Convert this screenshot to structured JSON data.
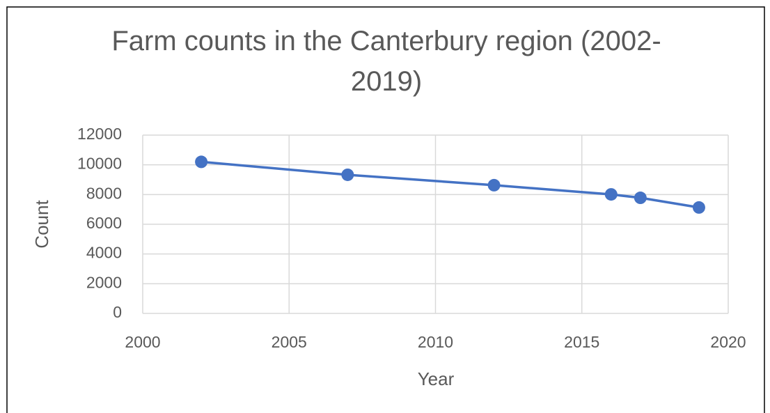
{
  "chart_data": {
    "type": "line",
    "title": "Farm counts in the Canterbury region (2002-2019)",
    "x_label": "Year",
    "y_label": "Count",
    "x": [
      2002,
      2007,
      2012,
      2016,
      2017,
      2019
    ],
    "series": [
      {
        "name": "Count",
        "color": "#4472c4",
        "values": [
          10200,
          9330,
          8630,
          8010,
          7780,
          7130
        ]
      }
    ],
    "xlim": [
      2000,
      2020
    ],
    "xticks": [
      2000,
      2005,
      2010,
      2015,
      2020
    ],
    "ylim": [
      0,
      12000
    ],
    "yticks": [
      0,
      2000,
      4000,
      6000,
      8000,
      10000,
      12000
    ],
    "grid": true
  }
}
